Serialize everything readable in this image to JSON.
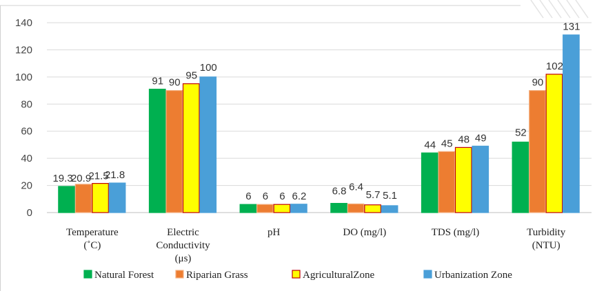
{
  "chart_data": {
    "type": "bar",
    "categories": [
      [
        "Temperature",
        "(˚C)"
      ],
      [
        "Electric",
        "Conductivity",
        "(μs)"
      ],
      [
        "pH"
      ],
      [
        "DO (mg/l)"
      ],
      [
        "TDS  (mg/l)"
      ],
      [
        "Turbidity",
        "(NTU)"
      ]
    ],
    "series": [
      {
        "name": "Natural Forest",
        "values": [
          19.3,
          91,
          6,
          6.8,
          44,
          52
        ],
        "labels": [
          "19.3",
          "91",
          "6",
          "6.8",
          "44",
          "52"
        ],
        "color": "#00b050",
        "stroke": "#00b050"
      },
      {
        "name": "Riparian Grass",
        "values": [
          20.9,
          90,
          6,
          6.4,
          45,
          90
        ],
        "labels": [
          "20.9",
          "90",
          "6",
          "6.4",
          "45",
          "90"
        ],
        "color": "#ed7d31",
        "stroke": "#f4b183"
      },
      {
        "name": "AgriculturalZone",
        "values": [
          21.5,
          95,
          6,
          5.7,
          48,
          102
        ],
        "labels": [
          "21.5",
          "95",
          "6",
          "5.7",
          "48",
          "102"
        ],
        "color": "#ffff00",
        "stroke": "#c00000"
      },
      {
        "name": "Urbanization Zone",
        "values": [
          21.8,
          100,
          6.2,
          5.1,
          49,
          131
        ],
        "labels": [
          "21.8",
          "100",
          "6.2",
          "5.1",
          "49",
          "131"
        ],
        "color": "#4a9fd8",
        "stroke": "#4a9fd8"
      }
    ],
    "ylim": [
      0,
      140
    ],
    "yticks": [
      0,
      20,
      40,
      60,
      80,
      100,
      120,
      140
    ],
    "grid": true,
    "legend": "bottom"
  }
}
